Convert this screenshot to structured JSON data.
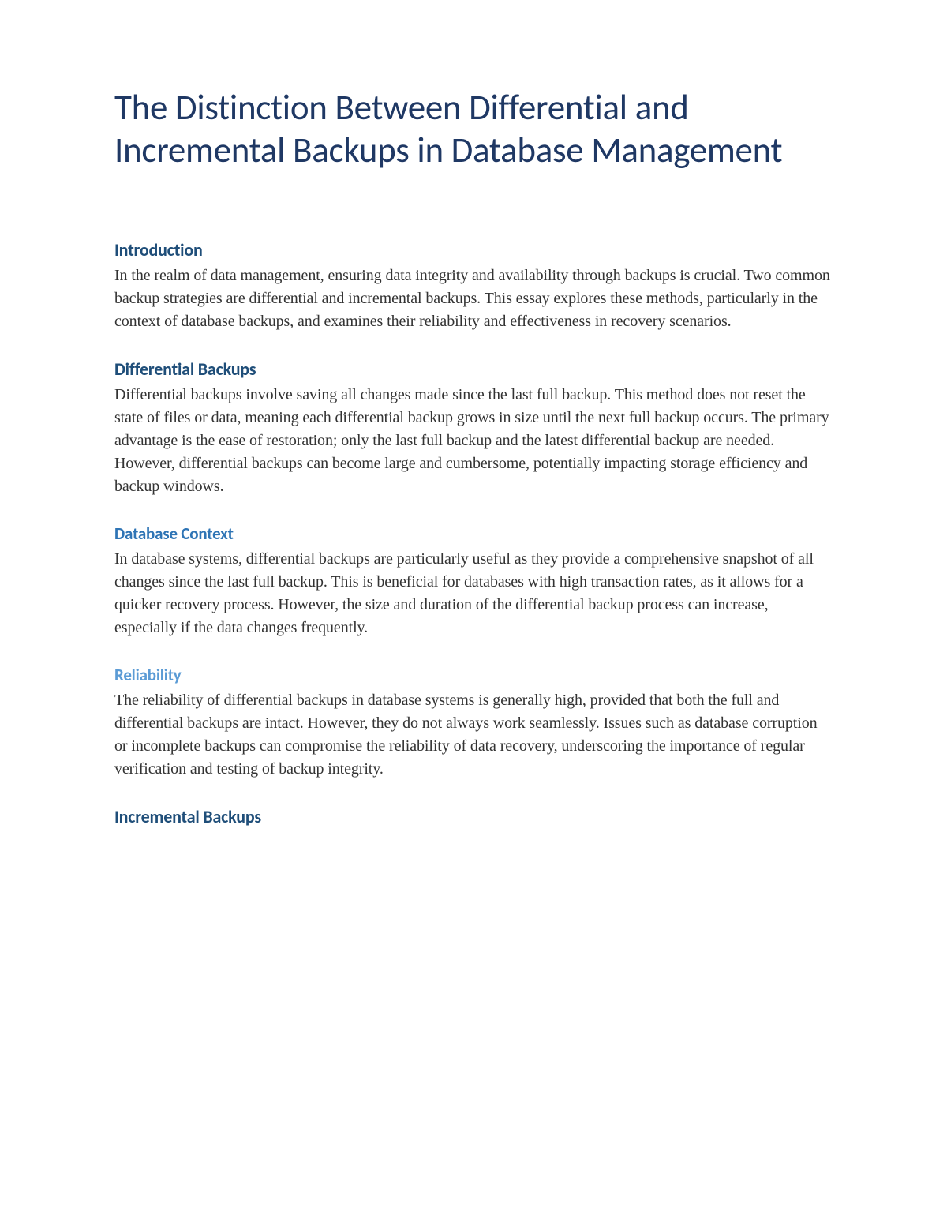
{
  "title": "The Distinction Between Differential and Incremental Backups in Database Management",
  "sections": {
    "intro": {
      "heading": "Introduction",
      "body": "In the realm of data management, ensuring data integrity and availability through backups is crucial. Two common backup strategies are differential and incremental backups. This essay explores these methods, particularly in the context of database backups, and examines their reliability and effectiveness in recovery scenarios."
    },
    "differential": {
      "heading": "Differential Backups",
      "body": "Differential backups involve saving all changes made since the last full backup. This method does not reset the state of files or data, meaning each differential backup grows in size until the next full backup occurs. The primary advantage is the ease of restoration; only the last full backup and the latest differential backup are needed. However, differential backups can become large and cumbersome, potentially impacting storage efficiency and backup windows."
    },
    "database_context": {
      "heading": "Database Context",
      "body": "In database systems, differential backups are particularly useful as they provide a comprehensive snapshot of all changes since the last full backup. This is beneficial for databases with high transaction rates, as it allows for a quicker recovery process. However, the size and duration of the differential backup process can increase, especially if the data changes frequently."
    },
    "reliability": {
      "heading": "Reliability",
      "body": "The reliability of differential backups in database systems is generally high, provided that both the full and differential backups are intact. However, they do not always work seamlessly. Issues such as database corruption or incomplete backups can compromise the reliability of data recovery, underscoring the importance of regular verification and testing of backup integrity."
    },
    "incremental": {
      "heading": "Incremental Backups"
    }
  },
  "colors": {
    "title": "#1f3864",
    "h1": "#1f4e79",
    "h2": "#2e74b5",
    "h3": "#5b9bd5",
    "body_text": "#333333",
    "background": "#ffffff"
  },
  "typography": {
    "title_size": 45,
    "h1_size": 22,
    "h2_size": 21,
    "h3_size": 21,
    "body_size": 20,
    "title_weight": 400,
    "heading_weight": 700,
    "body_weight": 400
  }
}
